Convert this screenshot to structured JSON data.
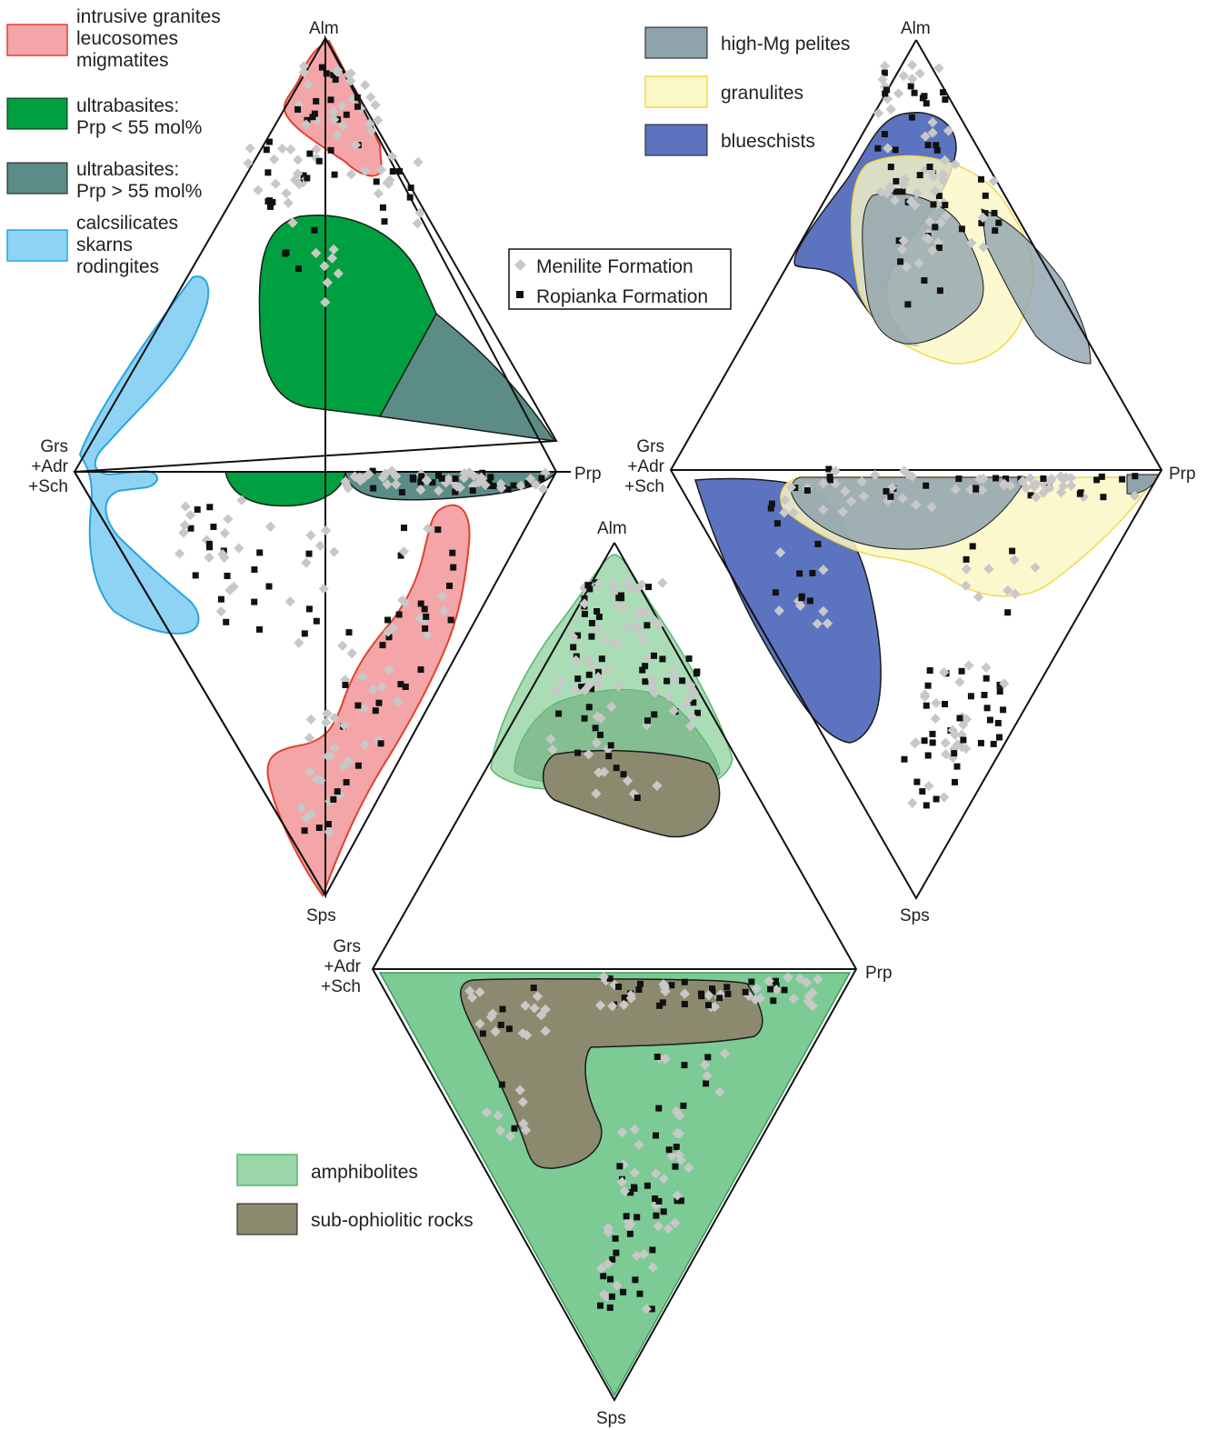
{
  "chart_data": [
    {
      "type": "scatter",
      "title": "",
      "subtype": "ternary-diamond",
      "vertices": {
        "top": "Alm",
        "left": "Grs\n+Adr\n+Sch",
        "right": "Prp",
        "bottom": "Sps"
      },
      "fields": [
        {
          "name": "intrusive granites\nleucosomes\nmigmatites",
          "fill": "#f4a5a7",
          "stroke": "#e2402e"
        },
        {
          "name": "ultrabasites:\nPrp < 55 mol%",
          "fill": "#00a040",
          "stroke": "#1a1a1a"
        },
        {
          "name": "ultrabasites:\nPrp > 55 mol%",
          "fill": "#5b8c86",
          "stroke": "#1a1a1a"
        },
        {
          "name": "calcsilicates\nskarns\nrodingites",
          "fill": "#8fd3f4",
          "stroke": "#2aa3e0"
        }
      ]
    },
    {
      "type": "scatter",
      "title": "",
      "subtype": "ternary-diamond",
      "vertices": {
        "top": "Alm",
        "left": "Grs\n+Adr\n+Sch",
        "right": "Prp",
        "bottom": "Sps"
      },
      "fields": [
        {
          "name": "high-Mg pelites",
          "fill": "#8fa3ad",
          "stroke": "#1a1a1a"
        },
        {
          "name": "granulites",
          "fill": "#fbf7c6",
          "stroke": "#f2d84a"
        },
        {
          "name": "blueschists",
          "fill": "#5c74bf",
          "stroke": "#1a1a1a"
        }
      ]
    },
    {
      "type": "scatter",
      "title": "",
      "subtype": "ternary-diamond",
      "vertices": {
        "top": "Alm",
        "left": "Grs\n+Adr\n+Sch",
        "right": "Prp",
        "bottom": "Sps"
      },
      "fields": [
        {
          "name": "amphibolites",
          "fill": "#9bd6a8",
          "stroke": "#5bb572"
        },
        {
          "name": "sub-ophiolitic rocks",
          "fill": "#8c8a6e",
          "stroke": "#1a1a1a"
        }
      ]
    }
  ],
  "series": [
    {
      "name": "Menilite Formation",
      "marker": "diamond",
      "color": "#c8c8c8"
    },
    {
      "name": "Ropianka Formation",
      "marker": "square",
      "color": "#111111"
    }
  ],
  "legend_placement": "center, between the upper diagrams"
}
